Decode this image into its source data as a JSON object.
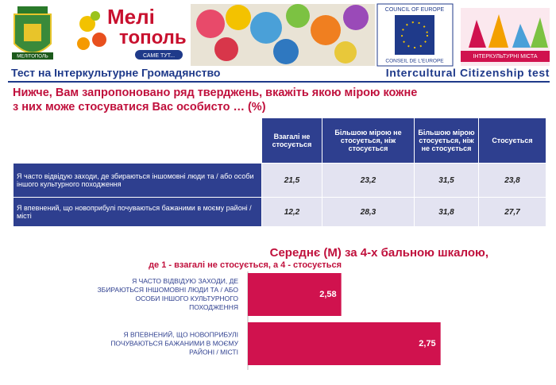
{
  "header": {
    "city_crest": "МЕЛІТОПОЛЬ",
    "brand_top": "Мелі",
    "brand_bottom": "тополь",
    "slogan": "САМЕ ТУТ...",
    "coe_en": "COUNCIL OF EUROPE",
    "coe_fr": "CONSEIL DE L'EUROPE",
    "icc": "ІНТЕРКУЛЬТУРНІ МІСТА",
    "title_ua": "Тест на Інтеркультурне Громадянство",
    "title_en": "Intercultural Citizenship test"
  },
  "question": "Нижче, Вам запропоновано ряд тверджень, вкажіть якою мірою кожне з них може стосуватися Вас особисто … (%)",
  "table": {
    "columns": [
      "Взагалі не стосується",
      "Більшою мірою не стосується, ніж стосується",
      "Більшою мірою стосується, ніж не стосується",
      "Стосується"
    ],
    "rows": [
      {
        "label": "Я часто відвідую заходи, де збираються іншомовні люди та / або особи іншого культурного походження",
        "values": [
          "21,5",
          "23,2",
          "31,5",
          "23,8"
        ]
      },
      {
        "label": "Я впевнений, що новоприбулі почуваються бажаними в моєму районі / місті",
        "values": [
          "12,2",
          "28,3",
          "31,8",
          "27,7"
        ]
      }
    ]
  },
  "chart_data": {
    "type": "bar",
    "orientation": "horizontal",
    "title": "Середнє (М) за 4-х бальною шкалою,",
    "subtitle": "де 1 - взагалі не стосується, а 4 - стосується",
    "categories": [
      "Я ЧАСТО ВІДВІДУЮ ЗАХОДИ, ДЕ ЗБИРАЮТЬСЯ ІНШОМОВНІ ЛЮДИ ТА / АБО ОСОБИ ІНШОГО КУЛЬТУРНОГО ПОХОДЖЕННЯ",
      "Я ВПЕВНЕНИЙ, ЩО НОВОПРИБУЛІ ПОЧУВАЮТЬСЯ БАЖАНИМИ В МОЄМУ РАЙОНІ / МІСТІ"
    ],
    "values": [
      2.58,
      2.75
    ],
    "value_labels": [
      "2,58",
      "2,75"
    ],
    "color": "#d0124e",
    "xlim": [
      2.42,
      2.9
    ]
  }
}
